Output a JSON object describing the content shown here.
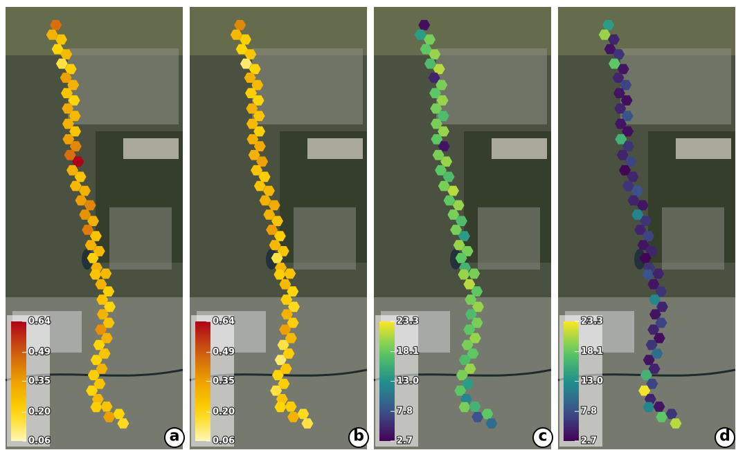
{
  "panels": [
    {
      "label": "a",
      "scale": "ylorrd",
      "lim": [
        0.06,
        0.64
      ],
      "ticks": [
        0.06,
        {
          "value": 0.2,
          "label": "0.20"
        },
        0.35,
        0.49,
        0.64
      ],
      "values": [
        0.45,
        0.3,
        0.25,
        0.2,
        0.28,
        0.15,
        0.22,
        0.35,
        0.3,
        0.25,
        0.2,
        0.32,
        0.28,
        0.3,
        0.25,
        0.35,
        0.4,
        0.45,
        0.64,
        0.3,
        0.25,
        0.28,
        0.3,
        0.35,
        0.4,
        0.38,
        0.3,
        0.42,
        0.25,
        0.3,
        0.28,
        0.22,
        0.3,
        0.25,
        0.28,
        0.3,
        0.22,
        0.25,
        0.2,
        0.3,
        0.25,
        0.38,
        0.3,
        0.2,
        0.25,
        0.2,
        0.3,
        0.22,
        0.25,
        0.2,
        0.28,
        0.22,
        0.25,
        0.35,
        0.2,
        0.18
      ]
    },
    {
      "label": "b",
      "scale": "ylorrd",
      "lim": [
        0.06,
        0.64
      ],
      "ticks": [
        0.06,
        {
          "value": 0.2,
          "label": "0.20"
        },
        0.35,
        0.49,
        0.64
      ],
      "values": [
        0.4,
        0.28,
        0.22,
        0.2,
        0.25,
        0.12,
        0.2,
        0.3,
        0.28,
        0.22,
        0.2,
        0.3,
        0.25,
        0.28,
        0.22,
        0.3,
        0.32,
        0.3,
        0.35,
        0.25,
        0.22,
        0.25,
        0.28,
        0.3,
        0.32,
        0.3,
        0.25,
        0.35,
        0.22,
        0.28,
        0.25,
        0.15,
        0.28,
        0.22,
        0.25,
        0.28,
        0.2,
        0.22,
        0.18,
        0.3,
        0.22,
        0.35,
        0.28,
        0.15,
        0.22,
        0.12,
        0.25,
        0.2,
        0.22,
        0.15,
        0.25,
        0.2,
        0.22,
        0.3,
        0.18,
        0.15
      ]
    },
    {
      "label": "c",
      "scale": "viridis",
      "lim": [
        2.7,
        23.3
      ],
      "ticks": [
        2.7,
        7.8,
        {
          "value": 13,
          "label": "13.0"
        },
        18.1,
        23.3
      ],
      "values": [
        3.5,
        14,
        19,
        18,
        20,
        17,
        21,
        5,
        19,
        18,
        20,
        19,
        17,
        19,
        20,
        18,
        4,
        19,
        20,
        18,
        17,
        19,
        21,
        18,
        20,
        19,
        17,
        19,
        14,
        20,
        19,
        18,
        16,
        20,
        19,
        21,
        18,
        19,
        20,
        17,
        19,
        18,
        20,
        19,
        18,
        17,
        20,
        19,
        14,
        18,
        12,
        19,
        16,
        8,
        18,
        10
      ]
    },
    {
      "label": "d",
      "scale": "viridis",
      "lim": [
        2.7,
        23.3
      ],
      "ticks": [
        2.7,
        7.8,
        {
          "value": 13,
          "label": "13.0"
        },
        18.1,
        23.3
      ],
      "values": [
        14,
        20,
        5,
        4,
        6,
        18,
        4,
        5,
        7,
        4,
        3.5,
        5,
        8,
        4,
        3.5,
        16,
        6,
        5,
        7,
        3,
        5,
        6,
        8,
        5,
        4,
        12,
        6,
        5,
        7,
        4,
        5,
        3,
        6,
        8,
        5,
        4,
        6,
        12,
        5,
        4,
        7,
        5,
        3.5,
        6,
        10,
        4,
        5,
        16,
        7,
        23,
        5,
        12,
        4,
        18,
        6,
        21
      ]
    }
  ]
}
